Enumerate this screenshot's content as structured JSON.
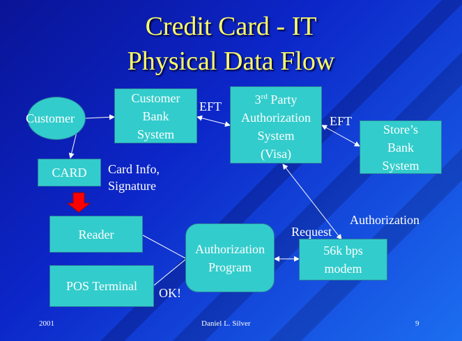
{
  "slide": {
    "title_line1": "Credit Card - IT",
    "title_line2": "Physical Data Flow"
  },
  "nodes": {
    "customer": "Customer",
    "card": "CARD",
    "customer_bank": "Customer\nBank\nSystem",
    "third_party_prefix": "3",
    "third_party_sup": "rd",
    "third_party_rest1": " Party",
    "third_party_rest2": "Authorization\nSystem\n(Visa)",
    "stores_bank": "Store’s\nBank\nSystem",
    "reader": "Reader",
    "pos_terminal": "POS Terminal",
    "auth_program": "Authorization\nProgram",
    "modem": "56k bps\nmodem"
  },
  "labels": {
    "eft_left": "EFT",
    "eft_right": "EFT",
    "card_info": "Card Info,\nSignature",
    "request": "Request",
    "authorization": "Authorization",
    "ok": "OK!"
  },
  "footer": {
    "year": "2001",
    "author": "Daniel L. Silver",
    "page": "9"
  },
  "colors": {
    "box_fill": "#33cccc",
    "title": "#ffff66",
    "arrow_red": "#ff0000"
  }
}
